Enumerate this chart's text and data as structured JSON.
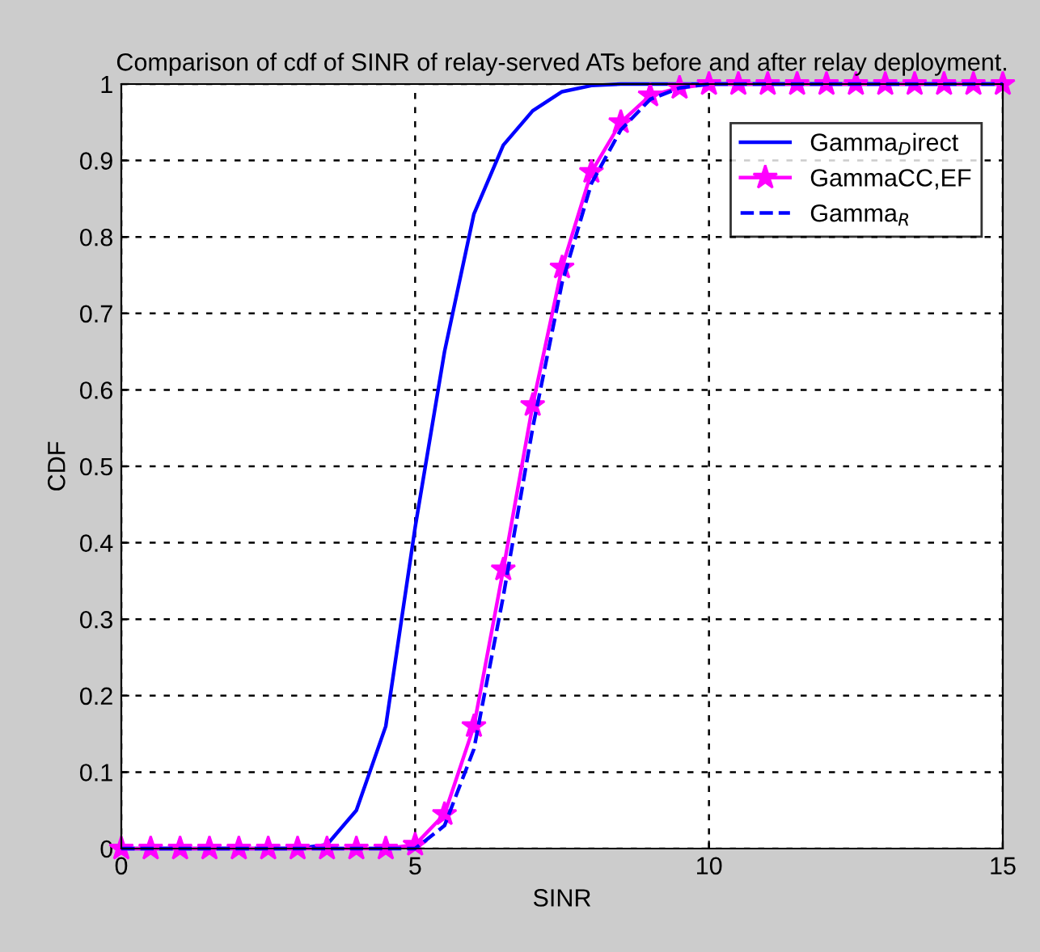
{
  "chart_data": {
    "type": "line",
    "title": "Comparison of cdf of SINR of relay-served ATs before and after relay deployment.",
    "xlabel": "SINR",
    "ylabel": "CDF",
    "xlim": [
      0,
      15
    ],
    "xticks": [
      0,
      5,
      10,
      15
    ],
    "ylim": [
      0,
      1
    ],
    "yticks": [
      0,
      0.1,
      0.2,
      0.3,
      0.4,
      0.5,
      0.6,
      0.7,
      0.8,
      0.9,
      1
    ],
    "grid": true,
    "legend": "top right",
    "series": [
      {
        "name": "Gamma$_{D}$irect",
        "color": "#0000ff",
        "line_style": "solid",
        "marker": "none",
        "x": [
          0,
          3,
          3.5,
          4,
          4.5,
          5,
          5.5,
          6,
          6.5,
          7,
          7.5,
          8,
          8.5,
          15
        ],
        "values": [
          0,
          0,
          0.005,
          0.05,
          0.16,
          0.42,
          0.65,
          0.83,
          0.92,
          0.965,
          0.99,
          0.998,
          1,
          1
        ]
      },
      {
        "name": "GammaCC,EF",
        "color": "#ff00ff",
        "line_style": "solid",
        "marker": "star",
        "x": [
          0,
          0.5,
          1,
          1.5,
          2,
          2.5,
          3,
          3.5,
          4,
          4.5,
          5,
          5.5,
          6,
          6.5,
          7,
          7.5,
          8,
          8.5,
          9,
          9.5,
          10,
          10.5,
          11,
          11.5,
          12,
          12.5,
          13,
          13.5,
          14,
          14.5,
          15
        ],
        "values": [
          0,
          0,
          0,
          0,
          0,
          0,
          0,
          0,
          0,
          0,
          0.005,
          0.045,
          0.16,
          0.365,
          0.58,
          0.76,
          0.885,
          0.95,
          0.985,
          0.995,
          1,
          1,
          1,
          1,
          1,
          1,
          1,
          1,
          1,
          1,
          1
        ]
      },
      {
        "name": "Gamma$_{R}$",
        "color": "#0000ff",
        "line_style": "dashed",
        "marker": "none",
        "x": [
          0,
          4.5,
          5,
          5.5,
          6,
          6.5,
          7,
          7.5,
          8,
          8.5,
          9,
          9.5,
          10,
          15
        ],
        "values": [
          0,
          0,
          0,
          0.03,
          0.13,
          0.33,
          0.55,
          0.74,
          0.87,
          0.94,
          0.98,
          0.995,
          1,
          1
        ]
      }
    ]
  }
}
